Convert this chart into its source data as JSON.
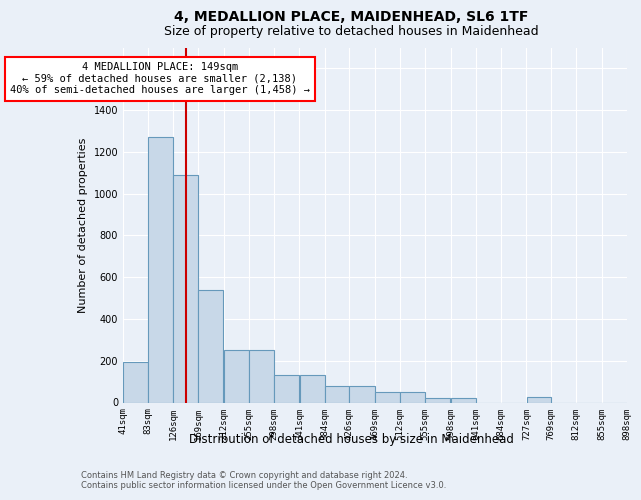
{
  "title1": "4, MEDALLION PLACE, MAIDENHEAD, SL6 1TF",
  "title2": "Size of property relative to detached houses in Maidenhead",
  "xlabel": "Distribution of detached houses by size in Maidenhead",
  "ylabel": "Number of detached properties",
  "annotation_line1": "4 MEDALLION PLACE: 149sqm",
  "annotation_line2": "← 59% of detached houses are smaller (2,138)",
  "annotation_line3": "40% of semi-detached houses are larger (1,458) →",
  "footer1": "Contains HM Land Registry data © Crown copyright and database right 2024.",
  "footer2": "Contains public sector information licensed under the Open Government Licence v3.0.",
  "bar_color": "#c8d8e8",
  "bar_edge_color": "#6699bb",
  "ref_line_color": "#cc0000",
  "ref_line_x": 149,
  "bins": [
    41,
    83,
    126,
    169,
    212,
    255,
    298,
    341,
    384,
    426,
    469,
    512,
    555,
    598,
    641,
    684,
    727,
    769,
    812,
    855,
    898
  ],
  "bin_labels": [
    "41sqm",
    "83sqm",
    "126sqm",
    "169sqm",
    "212sqm",
    "255sqm",
    "298sqm",
    "341sqm",
    "384sqm",
    "426sqm",
    "469sqm",
    "512sqm",
    "555sqm",
    "598sqm",
    "641sqm",
    "684sqm",
    "727sqm",
    "769sqm",
    "812sqm",
    "855sqm",
    "898sqm"
  ],
  "bar_heights": [
    196,
    1270,
    1090,
    540,
    250,
    250,
    130,
    130,
    78,
    78,
    50,
    50,
    20,
    20,
    0,
    0,
    28,
    0,
    0,
    0
  ],
  "ylim": [
    0,
    1700
  ],
  "yticks": [
    0,
    200,
    400,
    600,
    800,
    1000,
    1200,
    1400,
    1600
  ],
  "bg_color": "#eaf0f8",
  "grid_color": "#ffffff",
  "title1_fontsize": 10,
  "title2_fontsize": 9,
  "ylabel_fontsize": 8,
  "xlabel_fontsize": 8.5,
  "tick_fontsize": 7,
  "annotation_fontsize": 7.5,
  "footer_fontsize": 6
}
